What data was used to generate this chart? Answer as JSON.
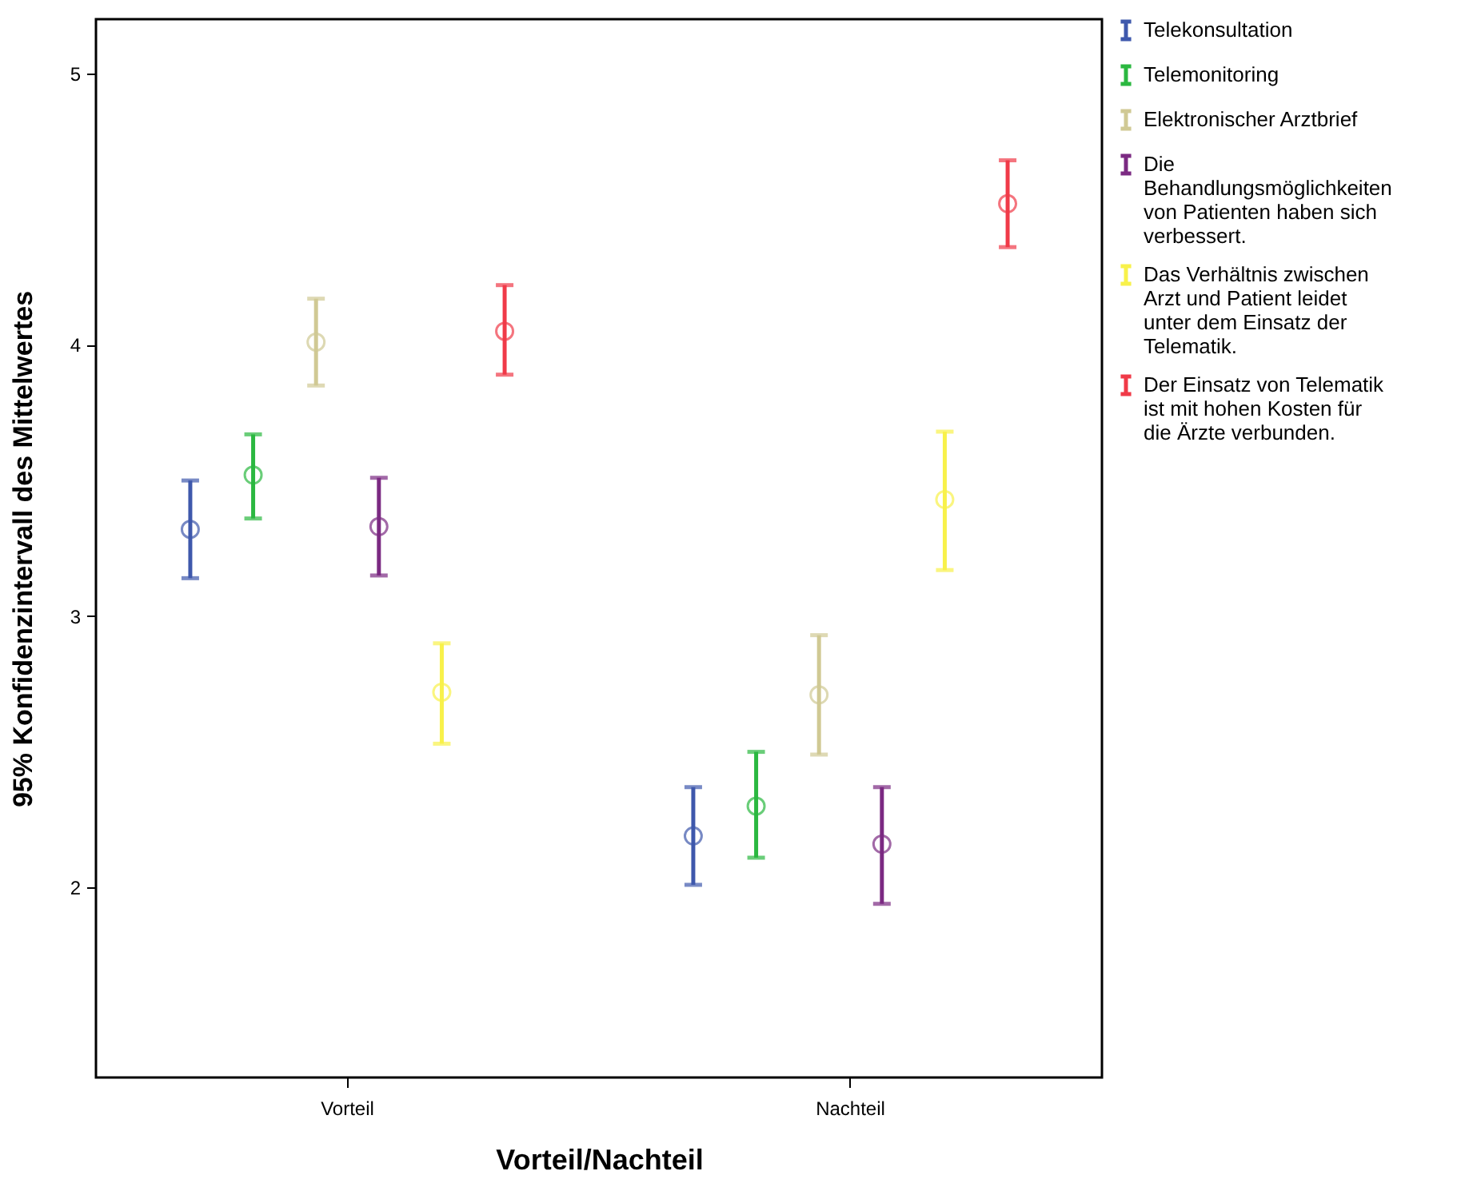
{
  "chart_data": {
    "type": "scatter",
    "xlabel": "Vorteil/Nachteil",
    "ylabel": "95% Konfidenzintervall des Mittelwertes",
    "categories": [
      "Vorteil",
      "Nachteil"
    ],
    "ylim": [
      1.3,
      5.2
    ],
    "yticks": [
      2,
      3,
      4,
      5
    ],
    "marker": "circle",
    "legend": "top right",
    "series": [
      {
        "name": "Telekonsultation",
        "color": "#3e58ac",
        "values": [
          3.32,
          2.19
        ],
        "errors": [
          [
            3.14,
            3.5
          ],
          [
            2.01,
            2.37
          ]
        ]
      },
      {
        "name": "Telemonitoring",
        "color": "#2bb840",
        "values": [
          3.52,
          2.3
        ],
        "errors": [
          [
            3.36,
            3.67
          ],
          [
            2.11,
            2.5
          ]
        ]
      },
      {
        "name": "Elektronischer Arztbrief",
        "color": "#d0c994",
        "values": [
          4.01,
          2.71
        ],
        "errors": [
          [
            3.85,
            4.17
          ],
          [
            2.49,
            2.93
          ]
        ]
      },
      {
        "name": "Die Behandlungsmöglichkeiten von Patienten haben sich verbessert.",
        "color": "#7b2a82",
        "values": [
          3.33,
          2.16
        ],
        "errors": [
          [
            3.15,
            3.51
          ],
          [
            1.94,
            2.37
          ]
        ]
      },
      {
        "name": "Das Verhältnis zwischen Arzt und Patient leidet unter dem Einsatz der Telematik.",
        "color": "#f8f14a",
        "values": [
          2.72,
          3.43
        ],
        "errors": [
          [
            2.53,
            2.9
          ],
          [
            3.17,
            3.68
          ]
        ]
      },
      {
        "name": "Der Einsatz von Telematik ist mit hohen Kosten für die Ärzte verbunden.",
        "color": "#f03a48",
        "values": [
          4.05,
          4.52
        ],
        "errors": [
          [
            3.89,
            4.22
          ],
          [
            4.36,
            4.68
          ]
        ]
      }
    ]
  }
}
